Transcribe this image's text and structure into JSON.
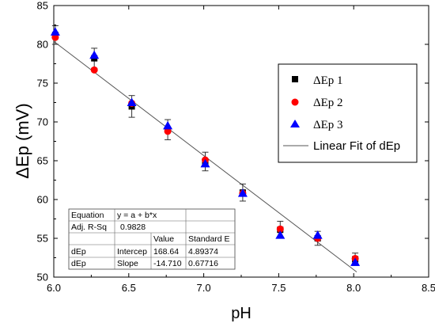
{
  "chart_data": {
    "type": "scatter",
    "xlabel": "pH",
    "ylabel": "ΔEp (mV)",
    "xlim": [
      6.0,
      8.5
    ],
    "ylim": [
      50,
      85
    ],
    "x_ticks": [
      "6.0",
      "6.5",
      "7.0",
      "7.5",
      "8.0",
      "8.5"
    ],
    "y_ticks": [
      "50",
      "55",
      "60",
      "65",
      "70",
      "75",
      "80",
      "85"
    ],
    "x": [
      6.01,
      6.27,
      6.52,
      6.76,
      7.01,
      7.26,
      7.51,
      7.76,
      8.01
    ],
    "series": [
      {
        "name": "ΔEp  1",
        "marker": "square",
        "color": "#000000",
        "values": [
          81.2,
          78.2,
          72.0,
          69.0,
          64.9,
          60.9,
          56.1,
          55.0,
          52.3
        ],
        "error": [
          1.2,
          1.3,
          1.4,
          1.3,
          1.2,
          1.1,
          1.1,
          0.9,
          0.8
        ]
      },
      {
        "name": "ΔEp 2",
        "marker": "circle",
        "color": "#ff0000",
        "values": [
          80.9,
          76.7,
          72.4,
          68.8,
          65.1,
          60.8,
          56.2,
          55.0,
          52.4
        ],
        "error": [
          0,
          0,
          0,
          0,
          0,
          0,
          0,
          0,
          0
        ]
      },
      {
        "name": "ΔEp  3",
        "marker": "triangle",
        "color": "#0000ff",
        "values": [
          81.6,
          78.6,
          72.5,
          69.5,
          64.6,
          60.8,
          55.4,
          55.4,
          51.9
        ],
        "error": [
          0,
          0,
          0,
          0,
          0,
          0,
          0,
          0,
          0
        ]
      }
    ],
    "fit": {
      "name": "Linear Fit of dEp",
      "color": "#555555",
      "intercept": 168.64,
      "slope": -14.71,
      "x_range": [
        6.0,
        8.02
      ]
    },
    "stats_table": {
      "rows": [
        [
          "Equation",
          "y = a + b*x",
          ""
        ],
        [
          "Adj. R-Sq",
          "0.9828",
          ""
        ],
        [
          "",
          "Value",
          "Standard E"
        ],
        [
          "dEp",
          "Intercep",
          "168.64",
          "4.89374"
        ],
        [
          "dEp",
          "Slope",
          "-14.710",
          "0.67716"
        ]
      ]
    },
    "legend_position": "right",
    "grid": false
  }
}
